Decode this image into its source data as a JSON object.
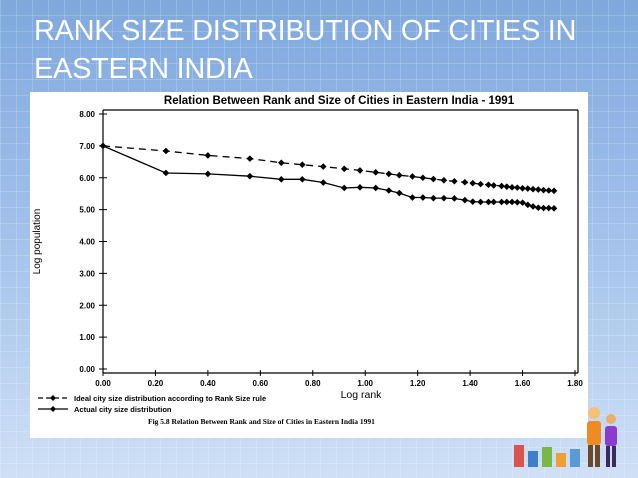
{
  "slide": {
    "title": "RANK SIZE DISTRIBUTION OF CITIES IN EASTERN INDIA"
  },
  "colors": {
    "background": "#9ab8e6",
    "panel": "#ffffff",
    "ink": "#000000",
    "title_text": "#ffffff"
  },
  "decor": {
    "people_icon": "people-figures-icon"
  },
  "chart_data": {
    "type": "line",
    "title": "Relation Between Rank and Size of Cities in Eastern India - 1991",
    "xlabel": "Log rank",
    "ylabel": "Log population",
    "xlim": [
      0,
      1.8
    ],
    "ylim": [
      0,
      8
    ],
    "xticks": [
      "0.00",
      "0.20",
      "0.40",
      "0.60",
      "0.80",
      "1.00",
      "1.20",
      "1.40",
      "1.60",
      "1.80"
    ],
    "yticks": [
      "0.00",
      "1.00",
      "2.00",
      "3.00",
      "4.00",
      "5.00",
      "6.00",
      "7.00",
      "8.00"
    ],
    "caption": "Fig 5.8 Relation Between Rank and Size of Cities in Eastern India 1991",
    "legend_position": "bottom-left",
    "grid": false,
    "series": [
      {
        "name": "Ideal city size distribution according to Rank Size rule",
        "style": "dashed",
        "x": [
          0.0,
          0.24,
          0.4,
          0.56,
          0.68,
          0.76,
          0.84,
          0.92,
          0.98,
          1.04,
          1.09,
          1.13,
          1.18,
          1.22,
          1.26,
          1.3,
          1.34,
          1.38,
          1.41,
          1.44,
          1.47,
          1.49,
          1.52,
          1.54,
          1.56,
          1.58,
          1.6,
          1.62,
          1.64,
          1.66,
          1.68,
          1.7,
          1.72
        ],
        "y": [
          7.0,
          6.84,
          6.7,
          6.6,
          6.47,
          6.41,
          6.35,
          6.28,
          6.23,
          6.17,
          6.12,
          6.08,
          6.04,
          6.0,
          5.96,
          5.92,
          5.89,
          5.86,
          5.83,
          5.8,
          5.78,
          5.76,
          5.74,
          5.72,
          5.7,
          5.69,
          5.67,
          5.66,
          5.64,
          5.63,
          5.61,
          5.6,
          5.59
        ]
      },
      {
        "name": "Actual city size distribution",
        "style": "solid",
        "x": [
          0.0,
          0.24,
          0.4,
          0.56,
          0.68,
          0.76,
          0.84,
          0.92,
          0.98,
          1.04,
          1.09,
          1.13,
          1.18,
          1.22,
          1.26,
          1.3,
          1.34,
          1.38,
          1.41,
          1.44,
          1.47,
          1.49,
          1.52,
          1.54,
          1.56,
          1.58,
          1.6,
          1.62,
          1.64,
          1.66,
          1.68,
          1.7,
          1.72
        ],
        "y": [
          7.0,
          6.15,
          6.12,
          6.05,
          5.95,
          5.95,
          5.85,
          5.68,
          5.7,
          5.68,
          5.6,
          5.52,
          5.38,
          5.38,
          5.36,
          5.36,
          5.35,
          5.3,
          5.25,
          5.24,
          5.24,
          5.24,
          5.24,
          5.24,
          5.24,
          5.23,
          5.22,
          5.15,
          5.1,
          5.06,
          5.05,
          5.05,
          5.04
        ]
      }
    ]
  }
}
